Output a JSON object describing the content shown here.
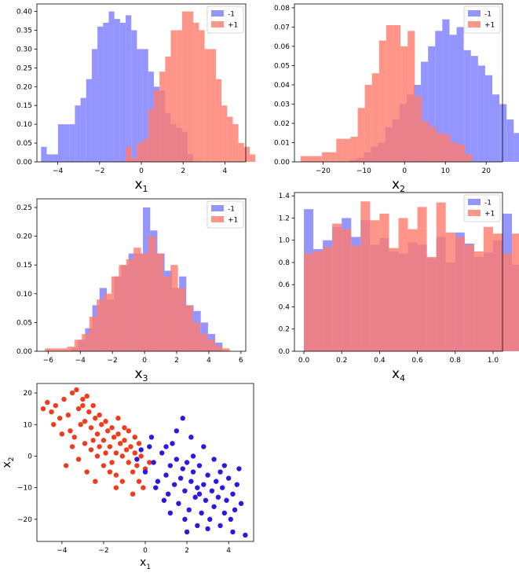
{
  "colors": {
    "neg": "#7b7bff",
    "pos": "#ff7b6b",
    "neg_point": "#2a1adf",
    "pos_point": "#f23a1c"
  },
  "chart_data": [
    {
      "type": "histogram",
      "legend": "top-right",
      "xlabel": "x",
      "xlabel_sub": "1",
      "xlim": [
        -5.0,
        5.0
      ],
      "ylim": [
        0,
        0.42
      ],
      "xticks": [
        -4,
        -2,
        0,
        2,
        4
      ],
      "yticks": [
        0.0,
        0.05,
        0.1,
        0.15,
        0.2,
        0.25,
        0.3,
        0.35,
        0.4
      ],
      "series": [
        {
          "name": "-1",
          "color_key": "neg",
          "x0": -4.8,
          "bin_width": 0.27,
          "values": [
            0.04,
            0.02,
            0.02,
            0.1,
            0.1,
            0.1,
            0.15,
            0.17,
            0.22,
            0.3,
            0.36,
            0.37,
            0.4,
            0.38,
            0.37,
            0.39,
            0.35,
            0.3,
            0.3,
            0.24,
            0.2,
            0.19,
            0.13,
            0.1,
            0.09,
            0.08,
            0.02
          ]
        },
        {
          "name": "+1",
          "color_key": "pos",
          "x0": -0.75,
          "bin_width": 0.27,
          "values": [
            0.04,
            0.01,
            0.05,
            0.06,
            0.14,
            0.19,
            0.24,
            0.28,
            0.35,
            0.35,
            0.4,
            0.4,
            0.37,
            0.35,
            0.3,
            0.3,
            0.22,
            0.15,
            0.12,
            0.1,
            0.05,
            0.04,
            0.02
          ]
        }
      ]
    },
    {
      "type": "histogram",
      "legend": "top-right",
      "xlabel": "x",
      "xlabel_sub": "2",
      "xlim": [
        -27,
        24
      ],
      "ylim": [
        0,
        0.082
      ],
      "xticks": [
        -20,
        -10,
        0,
        10,
        20
      ],
      "yticks": [
        0.0,
        0.01,
        0.02,
        0.03,
        0.04,
        0.05,
        0.06,
        0.07,
        0.08
      ],
      "series": [
        {
          "name": "-1",
          "color_key": "neg",
          "x0": -13.5,
          "bin_width": 1.75,
          "values": [
            0.001,
            0.002,
            0.005,
            0.008,
            0.01,
            0.018,
            0.022,
            0.03,
            0.035,
            0.04,
            0.052,
            0.06,
            0.068,
            0.074,
            0.066,
            0.07,
            0.058,
            0.055,
            0.05,
            0.045,
            0.035,
            0.03,
            0.022,
            0.015,
            0.008,
            0.008
          ]
        },
        {
          "name": "+1",
          "color_key": "pos",
          "x0": -25.5,
          "bin_width": 1.75,
          "values": [
            0.003,
            0.003,
            0.003,
            0.005,
            0.005,
            0.012,
            0.012,
            0.013,
            0.028,
            0.04,
            0.046,
            0.063,
            0.071,
            0.071,
            0.06,
            0.068,
            0.034,
            0.021,
            0.018,
            0.015,
            0.014,
            0.01,
            0.009,
            0.004
          ]
        }
      ]
    },
    {
      "type": "histogram",
      "legend": "top-right",
      "xlabel": "x",
      "xlabel_sub": "3",
      "xlim": [
        -6.7,
        6.3
      ],
      "ylim": [
        0,
        0.265
      ],
      "xticks": [
        -6,
        -4,
        -2,
        0,
        2,
        4,
        6
      ],
      "yticks": [
        0.0,
        0.05,
        0.1,
        0.15,
        0.2,
        0.25
      ],
      "series": [
        {
          "name": "-1",
          "color_key": "neg",
          "x0": -4.6,
          "bin_width": 0.45,
          "values": [
            0.005,
            0.02,
            0.04,
            0.08,
            0.11,
            0.09,
            0.13,
            0.15,
            0.17,
            0.17,
            0.25,
            0.21,
            0.17,
            0.14,
            0.11,
            0.13,
            0.08,
            0.07,
            0.05,
            0.03,
            0.015
          ]
        },
        {
          "name": "+1",
          "color_key": "pos",
          "x0": -6.2,
          "bin_width": 0.46,
          "values": [
            0.005,
            0.005,
            0.005,
            0.008,
            0.02,
            0.03,
            0.06,
            0.09,
            0.1,
            0.13,
            0.15,
            0.16,
            0.18,
            0.17,
            0.2,
            0.17,
            0.13,
            0.15,
            0.11,
            0.08,
            0.05,
            0.03,
            0.02,
            0.01,
            0.005
          ]
        }
      ]
    },
    {
      "type": "histogram",
      "legend": "top-right",
      "xlabel": "x",
      "xlabel_sub": "4",
      "xlim": [
        -0.05,
        1.05
      ],
      "ylim": [
        0,
        1.43
      ],
      "xticks": [
        0.0,
        0.2,
        0.4,
        0.6,
        0.8,
        1.0
      ],
      "yticks": [
        0.0,
        0.2,
        0.4,
        0.6,
        0.8,
        1.0,
        1.2,
        1.4
      ],
      "series": [
        {
          "name": "-1",
          "color_key": "neg",
          "x0": 0.0,
          "bin_width": 0.05,
          "values": [
            1.28,
            0.92,
            1.0,
            1.12,
            1.2,
            1.03,
            1.18,
            0.96,
            1.02,
            0.9,
            0.88,
            0.98,
            0.96,
            0.84,
            1.03,
            0.8,
            1.07,
            0.97,
            0.85,
            0.89,
            1.0,
            1.24,
            0.78,
            1.08,
            1.0,
            0.94,
            1.07,
            0.92,
            0.86,
            1.03,
            0.85,
            0.92,
            0.82,
            0.88,
            1.15,
            0.8,
            1.12,
            0.95,
            1.08,
            0.83,
            1.15,
            0.88,
            1.3,
            0.75,
            1.1,
            0.93,
            0.85,
            1.07,
            1.1,
            1.33
          ]
        },
        {
          "name": "+1",
          "color_key": "pos",
          "x0": 0.0,
          "bin_width": 0.05,
          "values": [
            0.88,
            0.9,
            0.94,
            1.15,
            1.1,
            0.95,
            1.35,
            1.18,
            1.24,
            0.93,
            1.2,
            1.1,
            1.3,
            0.85,
            1.34,
            1.07,
            1.03,
            0.96,
            0.9,
            1.12,
            1.06,
            0.88,
            1.06,
            1.0,
            0.95,
            0.88,
            0.86,
            0.84,
            0.92,
            0.96,
            0.95,
            0.82,
            0.88,
            0.92,
            0.9,
            0.85,
            0.86,
            0.93,
            0.82,
            0.96,
            0.97,
            0.92,
            0.85,
            0.88,
            0.82,
            0.93,
            0.8,
            0.85,
            0.9,
            0.82
          ]
        }
      ]
    },
    {
      "type": "scatter",
      "xlabel": "x",
      "xlabel_sub": "1",
      "ylabel": "x",
      "ylabel_sub": "2",
      "xlim": [
        -5.2,
        5.2
      ],
      "ylim": [
        -27,
        23
      ],
      "xticks": [
        -4,
        -2,
        0,
        2,
        4
      ],
      "yticks": [
        -20,
        -10,
        0,
        10,
        20
      ],
      "series": [
        {
          "name": "+1",
          "color_key": "pos_point",
          "points": [
            [
              -4.7,
              17
            ],
            [
              -4.5,
              14
            ],
            [
              -4.3,
              16
            ],
            [
              -4.1,
              12
            ],
            [
              -3.9,
              18
            ],
            [
              -3.7,
              13
            ],
            [
              -3.5,
              20
            ],
            [
              -3.3,
              21
            ],
            [
              -3.2,
              15
            ],
            [
              -3.0,
              18
            ],
            [
              -2.9,
              11
            ],
            [
              -2.8,
              19
            ],
            [
              -2.7,
              14
            ],
            [
              -2.6,
              9
            ],
            [
              -2.5,
              16
            ],
            [
              -2.4,
              12
            ],
            [
              -2.3,
              7
            ],
            [
              -2.2,
              13
            ],
            [
              -2.1,
              10
            ],
            [
              -2.0,
              5
            ],
            [
              -1.9,
              11
            ],
            [
              -1.8,
              8
            ],
            [
              -1.7,
              3
            ],
            [
              -1.6,
              9
            ],
            [
              -1.5,
              6
            ],
            [
              -1.4,
              1
            ],
            [
              -1.3,
              7
            ],
            [
              -1.2,
              4
            ],
            [
              -1.1,
              0
            ],
            [
              -1.0,
              5
            ],
            [
              -0.9,
              2
            ],
            [
              -0.8,
              -2
            ],
            [
              -0.7,
              3
            ],
            [
              -0.6,
              -5
            ],
            [
              -0.5,
              1
            ],
            [
              -0.4,
              -3
            ],
            [
              -0.3,
              -8
            ],
            [
              -0.2,
              0
            ],
            [
              -0.1,
              -10
            ],
            [
              0.0,
              -4
            ],
            [
              0.2,
              -2
            ],
            [
              -3.6,
              8
            ],
            [
              -3.4,
              6
            ],
            [
              -3.1,
              10
            ],
            [
              -2.9,
              4
            ],
            [
              -2.6,
              2
            ],
            [
              -2.3,
              0
            ],
            [
              -2.0,
              -3
            ],
            [
              -1.7,
              -5
            ],
            [
              -1.4,
              -6
            ],
            [
              -1.1,
              -8
            ],
            [
              -4.4,
              10
            ],
            [
              -4.0,
              7
            ],
            [
              -3.8,
              -3
            ],
            [
              -3.5,
              3
            ],
            [
              -3.2,
              -1
            ],
            [
              -2.8,
              -5
            ],
            [
              -2.5,
              5
            ],
            [
              -2.2,
              3
            ],
            [
              -1.9,
              1
            ],
            [
              -1.6,
              -2
            ],
            [
              -1.3,
              12
            ],
            [
              -1.0,
              9
            ],
            [
              -0.8,
              8
            ],
            [
              -0.5,
              6
            ],
            [
              -0.3,
              4
            ],
            [
              -0.6,
              -12
            ],
            [
              -1.4,
              -10
            ],
            [
              -2.4,
              -8
            ],
            [
              -4.9,
              15
            ],
            [
              -3.0,
              16
            ]
          ]
        },
        {
          "name": "-1",
          "color_key": "neg_point",
          "points": [
            [
              -0.4,
              -1
            ],
            [
              -0.2,
              2
            ],
            [
              0.0,
              -5
            ],
            [
              0.2,
              3
            ],
            [
              0.4,
              -2
            ],
            [
              0.6,
              -8
            ],
            [
              0.8,
              1
            ],
            [
              1.0,
              -6
            ],
            [
              1.1,
              -12
            ],
            [
              1.2,
              -3
            ],
            [
              1.3,
              4
            ],
            [
              1.4,
              -9
            ],
            [
              1.5,
              -1
            ],
            [
              1.6,
              -15
            ],
            [
              1.7,
              -7
            ],
            [
              1.8,
              -4
            ],
            [
              1.9,
              -11
            ],
            [
              2.0,
              -2
            ],
            [
              2.1,
              -17
            ],
            [
              2.2,
              -8
            ],
            [
              2.3,
              -5
            ],
            [
              2.4,
              -13
            ],
            [
              2.5,
              -10
            ],
            [
              2.6,
              -3
            ],
            [
              2.7,
              -18
            ],
            [
              2.8,
              -9
            ],
            [
              2.9,
              -14
            ],
            [
              3.0,
              -6
            ],
            [
              3.1,
              -20
            ],
            [
              3.2,
              -11
            ],
            [
              3.3,
              -16
            ],
            [
              3.4,
              -8
            ],
            [
              3.5,
              -13
            ],
            [
              3.6,
              -22
            ],
            [
              3.7,
              -10
            ],
            [
              3.8,
              -18
            ],
            [
              3.9,
              -14
            ],
            [
              4.0,
              -7
            ],
            [
              4.1,
              -20
            ],
            [
              4.2,
              -12
            ],
            [
              4.3,
              -17
            ],
            [
              4.4,
              -9
            ],
            [
              4.6,
              -15
            ],
            [
              4.8,
              -25
            ],
            [
              2.0,
              -24
            ],
            [
              3.0,
              -23
            ],
            [
              4.2,
              -24
            ],
            [
              1.0,
              3
            ],
            [
              1.5,
              8
            ],
            [
              2.2,
              6
            ],
            [
              2.8,
              3
            ],
            [
              3.3,
              -1
            ],
            [
              1.8,
              12
            ],
            [
              0.5,
              -10
            ],
            [
              1.2,
              -18
            ],
            [
              2.5,
              -22
            ],
            [
              3.8,
              -3
            ],
            [
              0.3,
              6
            ],
            [
              1.9,
              -20
            ],
            [
              2.6,
              -12
            ],
            [
              3.6,
              -5
            ],
            [
              0.9,
              -14
            ],
            [
              2.3,
              0
            ],
            [
              4.5,
              -4
            ]
          ]
        }
      ]
    }
  ]
}
